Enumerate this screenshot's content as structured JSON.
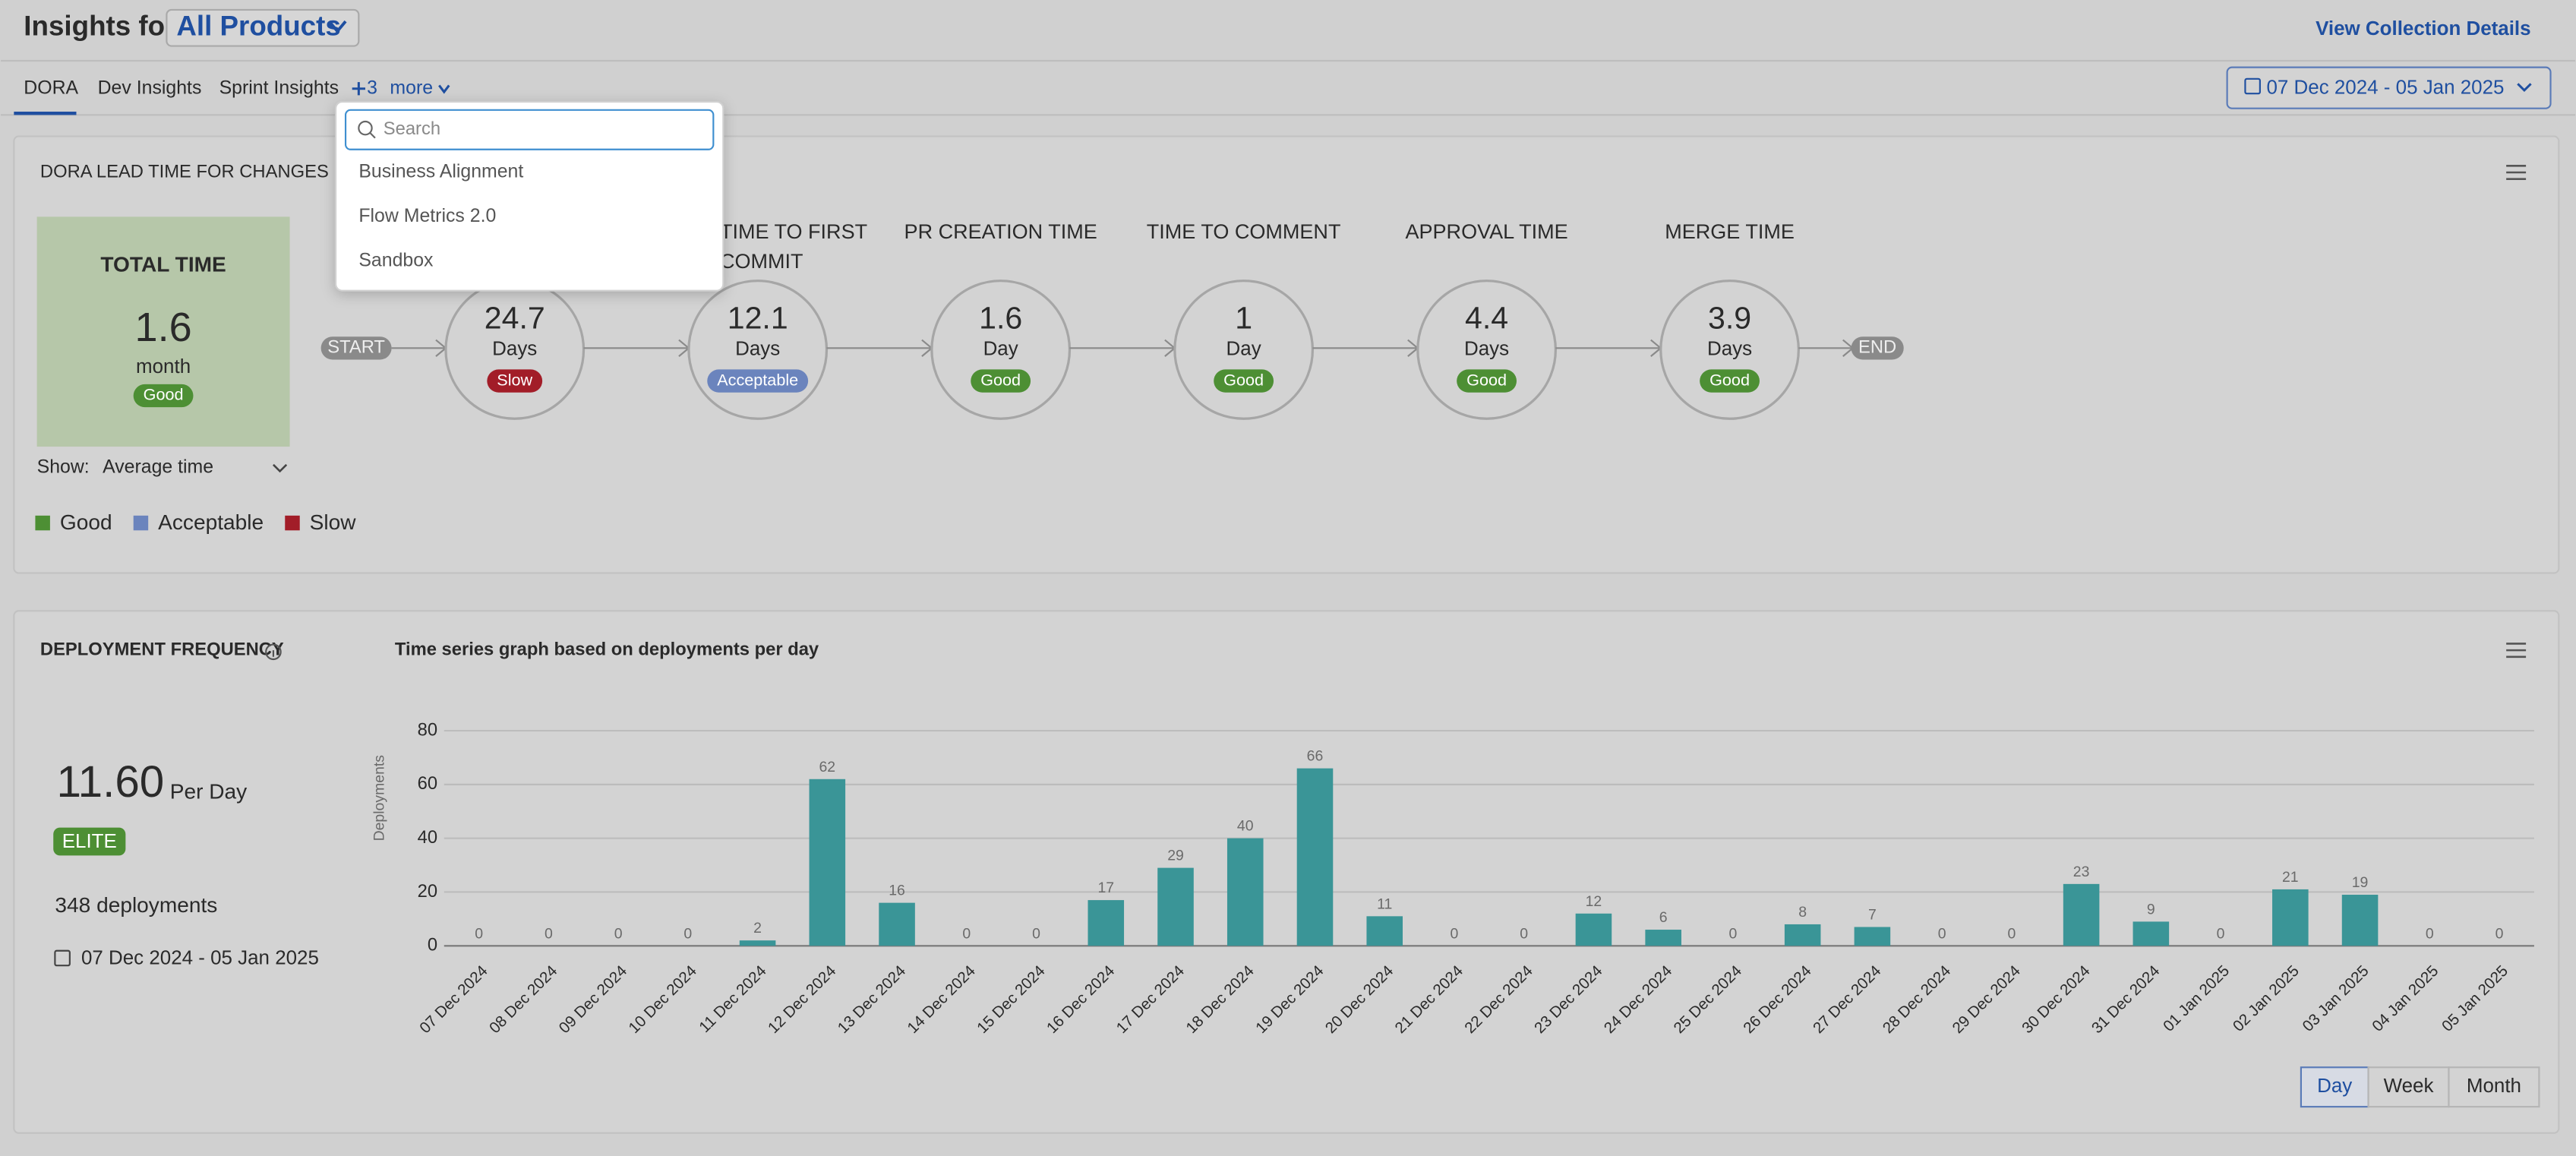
{
  "header": {
    "title": "Insights for",
    "collection": "All Products",
    "link": "View Collection Details"
  },
  "tabs": {
    "items": [
      "DORA",
      "Dev Insights",
      "Sprint Insights"
    ],
    "more_count": 3,
    "more_label": "more",
    "date_range": "07 Dec 2024 - 05 Jan 2025"
  },
  "dropdown": {
    "placeholder": "Search",
    "items": [
      "Business Alignment",
      "Flow Metrics 2.0",
      "Sandbox"
    ]
  },
  "lead_time": {
    "title": "DORA LEAD TIME FOR CHANGES REPORT",
    "total": {
      "label": "TOTAL TIME",
      "value": 1.6,
      "unit": "month",
      "status": "Good"
    },
    "start": "START",
    "end": "END",
    "stages": [
      {
        "value": 24.7,
        "unit": "Days",
        "status": "Slow"
      },
      {
        "name": "TIME TO FIRST COMMIT",
        "value": 12.1,
        "unit": "Days",
        "status": "Acceptable"
      },
      {
        "name": "PR CREATION TIME",
        "value": 1.6,
        "unit": "Day",
        "status": "Good"
      },
      {
        "name": "TIME TO COMMENT",
        "value": 1,
        "unit": "Day",
        "status": "Good"
      },
      {
        "name": "APPROVAL TIME",
        "value": 4.4,
        "unit": "Days",
        "status": "Good"
      },
      {
        "name": "MERGE TIME",
        "value": 3.9,
        "unit": "Days",
        "status": "Good"
      }
    ],
    "show_label": "Show:",
    "show_value": "Average time",
    "legend": [
      {
        "name": "Good",
        "color": "#4d8f34"
      },
      {
        "name": "Acceptable",
        "color": "#6b84bd"
      },
      {
        "name": "Slow",
        "color": "#a21d28"
      }
    ]
  },
  "deployment": {
    "title": "DEPLOYMENT FREQUENCY",
    "value": "11.60",
    "unit": "Per Day",
    "badge": "ELITE",
    "count": "348 deployments",
    "date_range": "07 Dec 2024 - 05 Jan 2025"
  },
  "chart_data": {
    "type": "bar",
    "title": "Time series graph based on deployments per day",
    "y_label": "Deployments",
    "categories": [
      "07 Dec 2024",
      "08 Dec 2024",
      "09 Dec 2024",
      "10 Dec 2024",
      "11 Dec 2024",
      "12 Dec 2024",
      "13 Dec 2024",
      "14 Dec 2024",
      "15 Dec 2024",
      "16 Dec 2024",
      "17 Dec 2024",
      "18 Dec 2024",
      "19 Dec 2024",
      "20 Dec 2024",
      "21 Dec 2024",
      "22 Dec 2024",
      "23 Dec 2024",
      "24 Dec 2024",
      "25 Dec 2024",
      "26 Dec 2024",
      "27 Dec 2024",
      "28 Dec 2024",
      "29 Dec 2024",
      "30 Dec 2024",
      "31 Dec 2024",
      "01 Jan 2025",
      "02 Jan 2025",
      "03 Jan 2025",
      "04 Jan 2025",
      "05 Jan 2025"
    ],
    "values": [
      0,
      0,
      0,
      0,
      2,
      62,
      16,
      0,
      0,
      17,
      29,
      40,
      66,
      11,
      0,
      0,
      12,
      6,
      0,
      8,
      7,
      0,
      0,
      23,
      9,
      0,
      21,
      19,
      0,
      0
    ],
    "color": "#3a9597",
    "ylim": [
      0,
      80
    ],
    "yticks": [
      0,
      20,
      40,
      60,
      80
    ],
    "grid": true
  },
  "granularity": {
    "items": [
      "Day",
      "Week",
      "Month"
    ],
    "selected": 0
  }
}
